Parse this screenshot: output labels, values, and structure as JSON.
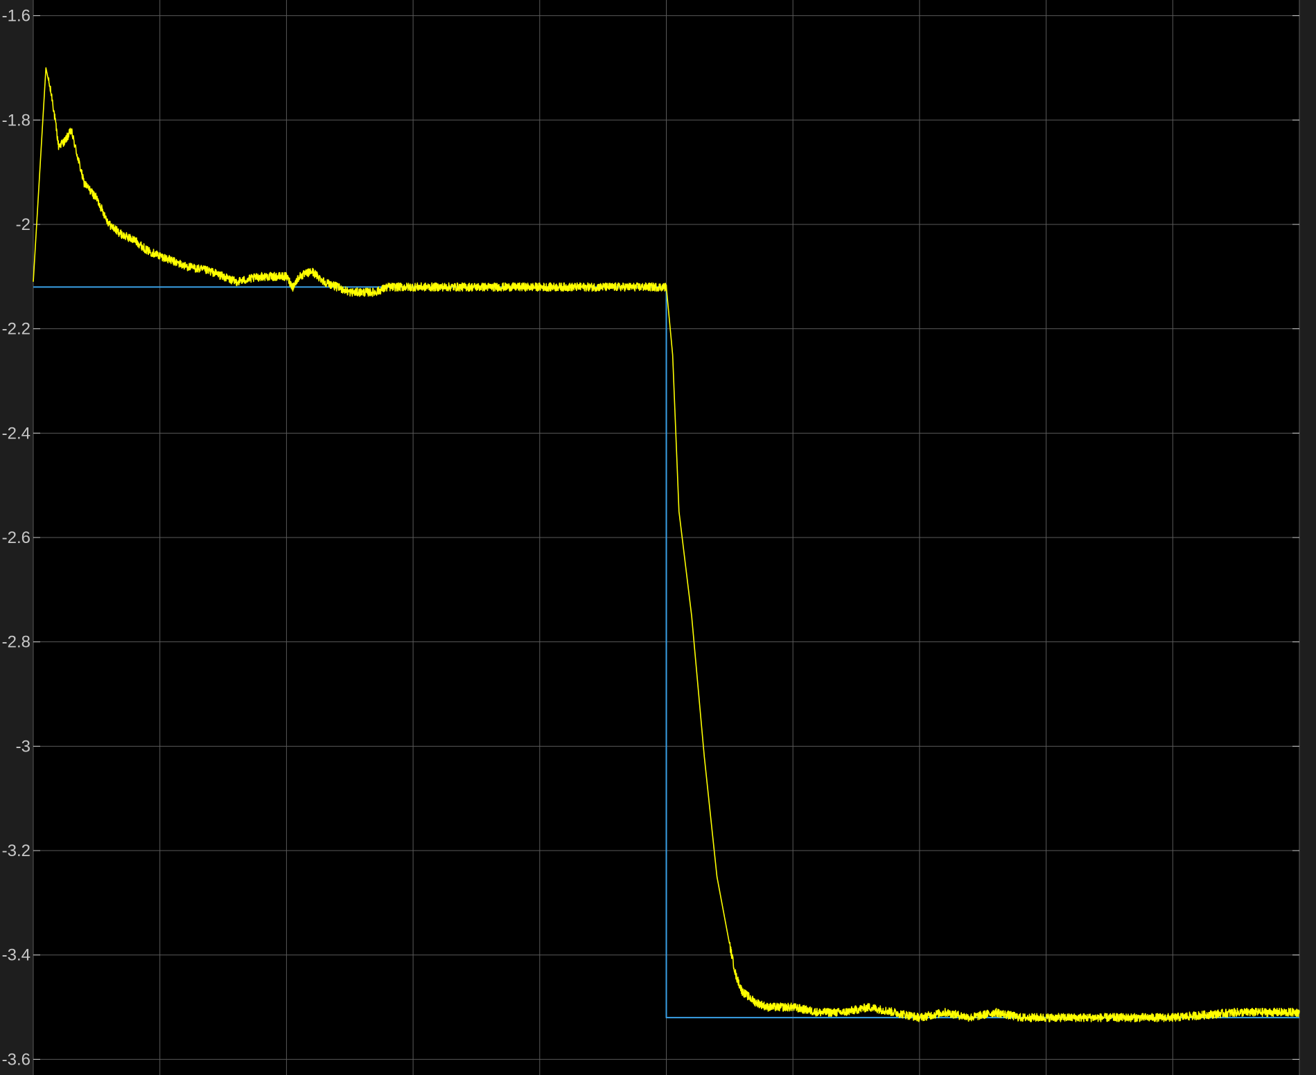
{
  "theme": {
    "background": "#000000",
    "figure_background": "#1e1e1e",
    "grid_color": "#5a5a5a",
    "tick_label_color": "#c8c8c8",
    "signal_color": "#ffff00",
    "reference_color": "#3aa0e6"
  },
  "chart_data": {
    "type": "line",
    "title": "",
    "xlabel": "",
    "ylabel": "",
    "grid": true,
    "legend": "none",
    "xlim": [
      0,
      10
    ],
    "ylim": [
      -3.63,
      -1.57
    ],
    "x_gridlines": [
      0,
      1,
      2,
      3,
      4,
      5,
      6,
      7,
      8,
      9,
      10
    ],
    "y_ticks": [
      -1.6,
      -1.8,
      -2.0,
      -2.2,
      -2.4,
      -2.6,
      -2.8,
      -3.0,
      -3.2,
      -3.4,
      -3.6
    ],
    "y_tick_labels": [
      "-1.6",
      "-1.8",
      "-2",
      "-2.2",
      "-2.4",
      "-2.6",
      "-2.8",
      "-3",
      "-3.2",
      "-3.4",
      "-3.6"
    ],
    "series": [
      {
        "role": "reference",
        "color": "#3aa0e6",
        "noise": 0,
        "x": [
          0,
          5.0,
          5.0,
          10
        ],
        "y": [
          -2.12,
          -2.12,
          -3.52,
          -3.52
        ]
      },
      {
        "role": "measured",
        "color": "#ffff00",
        "noise": 0.008,
        "x": [
          0,
          0.1,
          0.15,
          0.2,
          0.25,
          0.3,
          0.4,
          0.5,
          0.6,
          0.7,
          0.8,
          0.9,
          1.0,
          1.2,
          1.4,
          1.6,
          1.8,
          2.0,
          2.05,
          2.1,
          2.2,
          2.3,
          2.4,
          2.5,
          2.7,
          2.8,
          2.9,
          3.0,
          3.2,
          3.5,
          4.0,
          4.5,
          4.95,
          5.0,
          5.05,
          5.1,
          5.2,
          5.3,
          5.4,
          5.5,
          5.55,
          5.6,
          5.7,
          5.8,
          5.9,
          6.0,
          6.2,
          6.4,
          6.6,
          6.8,
          7.0,
          7.2,
          7.4,
          7.6,
          7.8,
          8.0,
          8.5,
          9.0,
          9.5,
          10.0
        ],
        "y": [
          -2.11,
          -1.7,
          -1.76,
          -1.85,
          -1.84,
          -1.82,
          -1.92,
          -1.95,
          -2.0,
          -2.02,
          -2.03,
          -2.05,
          -2.06,
          -2.08,
          -2.09,
          -2.11,
          -2.1,
          -2.1,
          -2.12,
          -2.1,
          -2.09,
          -2.11,
          -2.12,
          -2.13,
          -2.13,
          -2.12,
          -2.12,
          -2.12,
          -2.12,
          -2.12,
          -2.12,
          -2.12,
          -2.12,
          -2.12,
          -2.25,
          -2.55,
          -2.75,
          -3.02,
          -3.25,
          -3.38,
          -3.44,
          -3.47,
          -3.49,
          -3.5,
          -3.5,
          -3.5,
          -3.51,
          -3.51,
          -3.5,
          -3.51,
          -3.52,
          -3.51,
          -3.52,
          -3.51,
          -3.52,
          -3.52,
          -3.52,
          -3.52,
          -3.51,
          -3.51
        ]
      }
    ]
  }
}
